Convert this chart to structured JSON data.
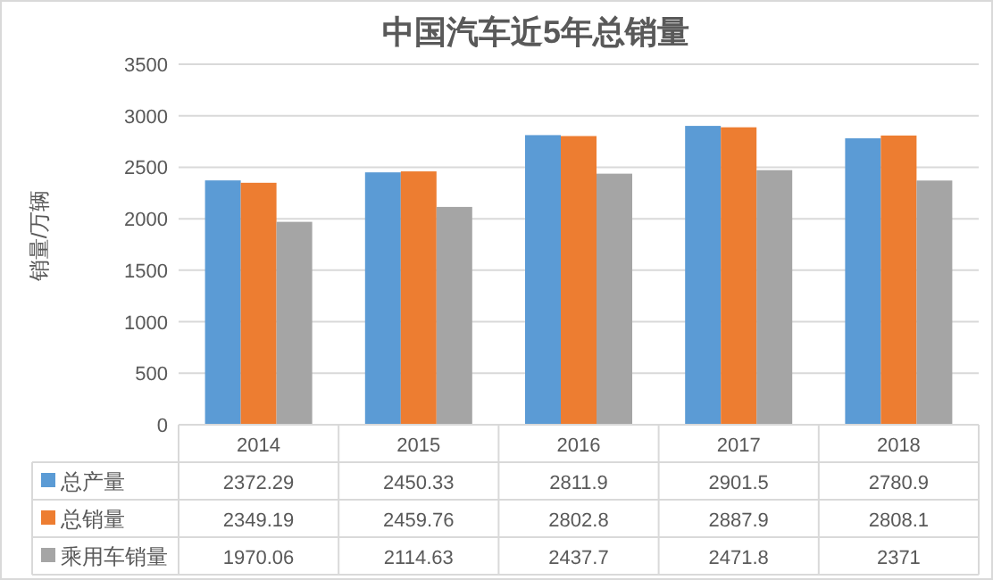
{
  "chart_data": {
    "type": "bar",
    "title": "中国汽车近5年总销量",
    "ylabel": "销量/万辆",
    "categories": [
      "2014",
      "2015",
      "2016",
      "2017",
      "2018"
    ],
    "series": [
      {
        "name": "总产量",
        "color": "#5b9bd5",
        "values": [
          2372.29,
          2450.33,
          2811.9,
          2901.5,
          2780.9
        ]
      },
      {
        "name": "总销量",
        "color": "#ed7d31",
        "values": [
          2349.19,
          2459.76,
          2802.8,
          2887.9,
          2808.1
        ]
      },
      {
        "name": "乘用车销量",
        "color": "#a5a5a5",
        "values": [
          1970.06,
          2114.63,
          2437.7,
          2471.8,
          2371
        ]
      }
    ],
    "ylim": [
      0,
      3500
    ],
    "yticks": [
      0,
      500,
      1000,
      1500,
      2000,
      2500,
      3000,
      3500
    ],
    "grid": "y",
    "data_labels": true,
    "legend": "bottom"
  }
}
